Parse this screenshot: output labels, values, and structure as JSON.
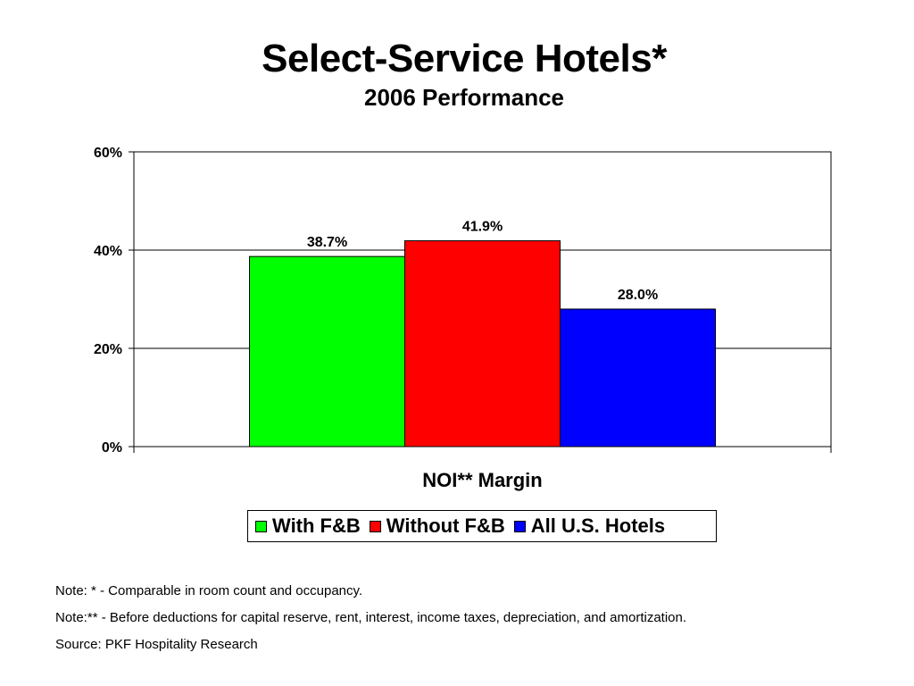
{
  "slide": {
    "title": "Select-Service Hotels*",
    "subtitle": "2006 Performance"
  },
  "chart_data": {
    "type": "bar",
    "categories": [
      "NOI** Margin"
    ],
    "series": [
      {
        "name": "With F&B",
        "values": [
          38.7
        ],
        "label": "38.7%",
        "color": "#00ff00"
      },
      {
        "name": "Without F&B",
        "values": [
          41.9
        ],
        "label": "41.9%",
        "color": "#ff0000"
      },
      {
        "name": "All U.S. Hotels",
        "values": [
          28.0
        ],
        "label": "28.0%",
        "color": "#0000ff"
      }
    ],
    "xlabel": "NOI** Margin",
    "ylabel": "",
    "ylim": [
      0,
      60
    ],
    "yticks": [
      0,
      20,
      40,
      60
    ],
    "ytick_labels": [
      "0%",
      "20%",
      "40%",
      "60%"
    ],
    "grid": true,
    "legend_position": "bottom"
  },
  "notes": [
    "Note: * - Comparable in room count and occupancy.",
    "Note:** - Before deductions for capital reserve, rent, interest, income taxes, depreciation, and amortization.",
    "Source: PKF Hospitality Research"
  ]
}
